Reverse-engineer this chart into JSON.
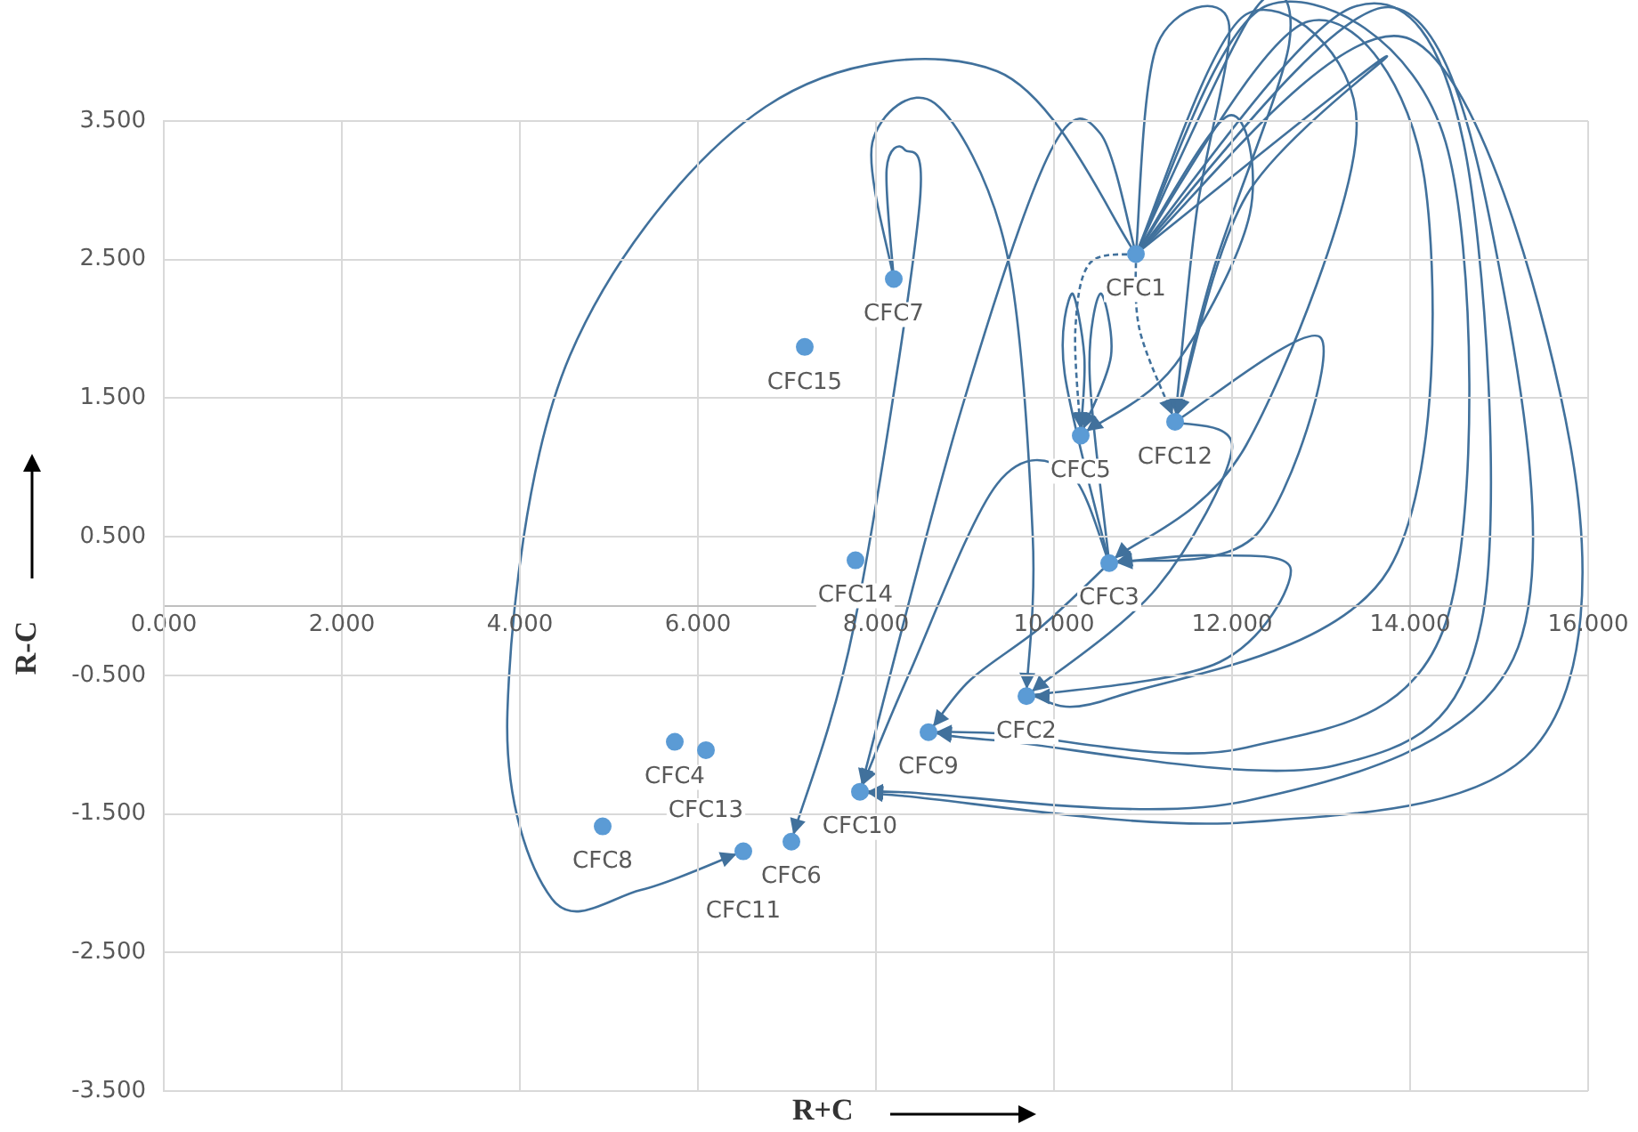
{
  "chart_data": {
    "type": "scatter",
    "xlabel": "R+C",
    "ylabel": "R-C",
    "x": [
      10.92,
      9.69,
      10.62,
      5.74,
      10.3,
      7.05,
      8.2,
      4.93,
      8.59,
      7.82,
      6.51,
      11.36,
      6.09,
      7.77,
      7.2
    ],
    "values": [
      2.54,
      -0.65,
      0.31,
      -0.98,
      1.23,
      -1.7,
      2.36,
      -1.59,
      -0.91,
      -1.34,
      -1.77,
      1.33,
      -1.04,
      0.33,
      1.87
    ],
    "color": "#5b9bd5",
    "marker": "circle",
    "grid": true,
    "xlim": [
      0,
      16
    ],
    "ylim": [
      -3.5,
      3.5
    ],
    "xticks": [
      {
        "value": 0,
        "label": "0.000"
      },
      {
        "value": 2,
        "label": "2.000"
      },
      {
        "value": 4,
        "label": "4.000"
      },
      {
        "value": 6,
        "label": "6.000"
      },
      {
        "value": 8,
        "label": "8.000"
      },
      {
        "value": 10,
        "label": "10.000"
      },
      {
        "value": 12,
        "label": "12.000"
      },
      {
        "value": 14,
        "label": "14.000"
      },
      {
        "value": 16,
        "label": "16.000"
      }
    ],
    "yticks": [
      {
        "value": -3.5,
        "label": "-3.500"
      },
      {
        "value": -2.5,
        "label": "-2.500"
      },
      {
        "value": -1.5,
        "label": "-1.500"
      },
      {
        "value": -0.5,
        "label": "-0.500"
      },
      {
        "value": 0.5,
        "label": "0.500"
      },
      {
        "value": 1.5,
        "label": "1.500"
      },
      {
        "value": 2.5,
        "label": "2.500"
      },
      {
        "value": 3.5,
        "label": "3.500"
      }
    ],
    "annotations": [
      {
        "text": "CFC1",
        "x": 10.92,
        "y": 2.54
      },
      {
        "text": "CFC2",
        "x": 9.69,
        "y": -0.65
      },
      {
        "text": "CFC3",
        "x": 10.62,
        "y": 0.31
      },
      {
        "text": "CFC4",
        "x": 5.74,
        "y": -0.98
      },
      {
        "text": "CFC5",
        "x": 10.3,
        "y": 1.23
      },
      {
        "text": "CFC6",
        "x": 7.05,
        "y": -1.7
      },
      {
        "text": "CFC7",
        "x": 8.2,
        "y": 2.36
      },
      {
        "text": "CFC8",
        "x": 4.93,
        "y": -1.59
      },
      {
        "text": "CFC9",
        "x": 8.59,
        "y": -0.91
      },
      {
        "text": "CFC10",
        "x": 7.82,
        "y": -1.34
      },
      {
        "text": "CFC11",
        "x": 6.51,
        "y": -1.77
      },
      {
        "text": "CFC12",
        "x": 11.36,
        "y": 1.33
      },
      {
        "text": "CFC13",
        "x": 6.09,
        "y": -1.04
      },
      {
        "text": "CFC14",
        "x": 7.77,
        "y": 0.33
      },
      {
        "text": "CFC15",
        "x": 7.2,
        "y": 1.87
      }
    ]
  }
}
